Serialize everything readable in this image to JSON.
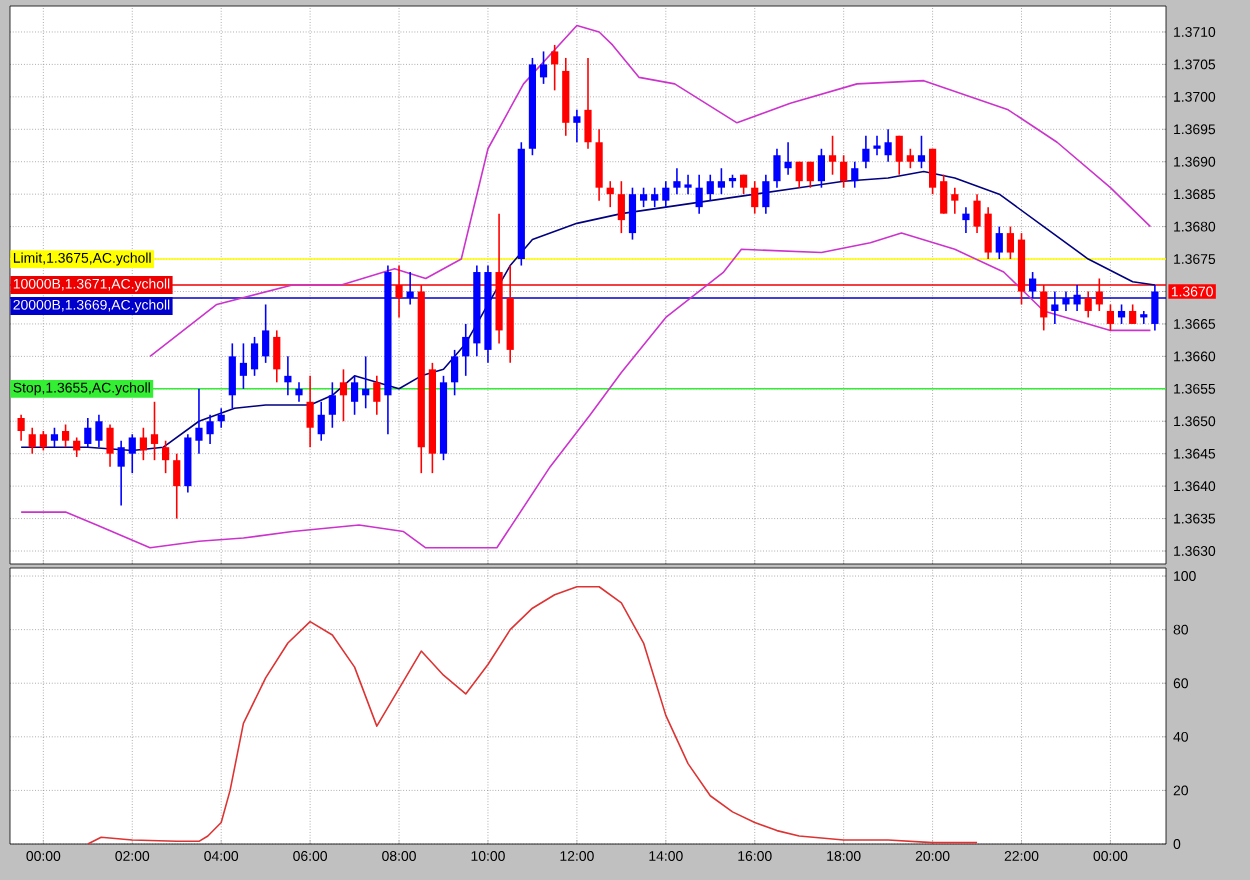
{
  "chart_data": [
    {
      "type": "candlestick",
      "x": [
        -0.5,
        -0.25,
        0,
        0.25,
        0.5,
        0.75,
        1,
        1.25,
        1.5,
        1.75,
        2,
        2.25,
        2.5,
        2.75,
        3,
        3.25,
        3.5,
        3.75,
        4,
        4.25,
        4.5,
        4.75,
        5,
        5.25,
        5.5,
        5.75,
        6,
        6.25,
        6.5,
        6.75,
        7,
        7.25,
        7.5,
        7.75,
        8,
        8.25,
        8.5,
        8.75,
        9,
        9.25,
        9.5,
        9.75,
        10,
        10.25,
        10.5,
        10.75,
        11,
        11.25,
        11.5,
        11.75,
        12,
        12.25,
        12.5,
        12.75,
        13,
        13.25,
        13.5,
        13.75,
        14,
        14.25,
        14.5,
        14.75,
        15,
        15.25,
        15.5,
        15.75,
        16,
        16.25,
        16.5,
        16.75,
        17,
        17.25,
        17.5,
        17.75,
        18,
        18.25,
        18.5,
        18.75,
        19,
        19.25,
        19.5,
        19.75,
        20,
        20.25,
        20.5,
        20.75,
        21,
        21.25,
        21.5,
        21.75,
        22,
        22.25,
        22.5,
        22.75,
        23,
        23.25,
        23.5,
        23.75,
        24,
        24.25,
        24.5,
        24.75,
        25
      ],
      "xticks": [
        {
          "value": 0,
          "label": null
        },
        {
          "value": 2,
          "label": null
        },
        {
          "value": 4,
          "label": null
        },
        {
          "value": 6,
          "label": null
        },
        {
          "value": 8,
          "label": null
        },
        {
          "value": 10,
          "label": null
        },
        {
          "value": 12,
          "label": null
        },
        {
          "value": 14,
          "label": null
        },
        {
          "value": 16,
          "label": null
        },
        {
          "value": 18,
          "label": null
        },
        {
          "value": 20,
          "label": null
        },
        {
          "value": 22,
          "label": null
        },
        {
          "value": 24,
          "label": null
        }
      ],
      "ohlc": [
        [
          1.36505,
          1.3651,
          1.3647,
          1.36485
        ],
        [
          1.3648,
          1.3649,
          1.3645,
          1.3646
        ],
        [
          1.3648,
          1.36485,
          1.36455,
          1.3646
        ],
        [
          1.3647,
          1.3649,
          1.3646,
          1.3648
        ],
        [
          1.36485,
          1.36495,
          1.3646,
          1.3647
        ],
        [
          1.3647,
          1.36475,
          1.36445,
          1.36455
        ],
        [
          1.36465,
          1.36505,
          1.3646,
          1.3649
        ],
        [
          1.3647,
          1.3651,
          1.3646,
          1.365
        ],
        [
          1.3649,
          1.36495,
          1.3643,
          1.3645
        ],
        [
          1.3643,
          1.3647,
          1.3637,
          1.3646
        ],
        [
          1.3645,
          1.3648,
          1.3642,
          1.36475
        ],
        [
          1.36475,
          1.3649,
          1.3644,
          1.36455
        ],
        [
          1.3648,
          1.3653,
          1.3644,
          1.36465
        ],
        [
          1.3646,
          1.3647,
          1.3642,
          1.3644
        ],
        [
          1.3644,
          1.3645,
          1.3635,
          1.364
        ],
        [
          1.364,
          1.3648,
          1.3639,
          1.36475
        ],
        [
          1.3647,
          1.3655,
          1.3645,
          1.3649
        ],
        [
          1.3648,
          1.3651,
          1.36465,
          1.365
        ],
        [
          1.365,
          1.3652,
          1.3649,
          1.3651
        ],
        [
          1.3654,
          1.3662,
          1.3652,
          1.366
        ],
        [
          1.3657,
          1.3662,
          1.3655,
          1.3659
        ],
        [
          1.3658,
          1.3663,
          1.3657,
          1.3662
        ],
        [
          1.366,
          1.3668,
          1.3659,
          1.3664
        ],
        [
          1.3663,
          1.3664,
          1.3656,
          1.3658
        ],
        [
          1.3656,
          1.366,
          1.3654,
          1.3657
        ],
        [
          1.3654,
          1.3656,
          1.3653,
          1.3655
        ],
        [
          1.3653,
          1.3657,
          1.3646,
          1.3649
        ],
        [
          1.3648,
          1.3653,
          1.3647,
          1.3651
        ],
        [
          1.3651,
          1.3656,
          1.3649,
          1.3654
        ],
        [
          1.3656,
          1.3658,
          1.365,
          1.3654
        ],
        [
          1.3653,
          1.3657,
          1.3651,
          1.3656
        ],
        [
          1.3654,
          1.366,
          1.3652,
          1.3655
        ],
        [
          1.3656,
          1.3657,
          1.3651,
          1.3653
        ],
        [
          1.3654,
          1.3674,
          1.3648,
          1.3673
        ],
        [
          1.3671,
          1.3674,
          1.3666,
          1.3669
        ],
        [
          1.3669,
          1.3673,
          1.3668,
          1.367
        ],
        [
          1.367,
          1.3671,
          1.3642,
          1.3646
        ],
        [
          1.3658,
          1.3659,
          1.3642,
          1.3645
        ],
        [
          1.3645,
          1.3657,
          1.3644,
          1.3656
        ],
        [
          1.3656,
          1.3661,
          1.3654,
          1.366
        ],
        [
          1.366,
          1.3665,
          1.3657,
          1.3663
        ],
        [
          1.3662,
          1.3674,
          1.366,
          1.3673
        ],
        [
          1.3661,
          1.3674,
          1.3659,
          1.3673
        ],
        [
          1.3673,
          1.3682,
          1.3662,
          1.3664
        ],
        [
          1.3669,
          1.3674,
          1.3659,
          1.3661
        ],
        [
          1.3675,
          1.3693,
          1.3674,
          1.3692
        ],
        [
          1.3692,
          1.3706,
          1.3691,
          1.3705
        ],
        [
          1.3703,
          1.3707,
          1.3702,
          1.3705
        ],
        [
          1.3707,
          1.3708,
          1.3701,
          1.3705
        ],
        [
          1.3704,
          1.3706,
          1.3694,
          1.3696
        ],
        [
          1.3696,
          1.3698,
          1.3693,
          1.3697
        ],
        [
          1.3698,
          1.3706,
          1.3692,
          1.3693
        ],
        [
          1.3693,
          1.3695,
          1.3684,
          1.3686
        ],
        [
          1.3686,
          1.3687,
          1.3683,
          1.3685
        ],
        [
          1.3685,
          1.3687,
          1.3679,
          1.3681
        ],
        [
          1.3679,
          1.3686,
          1.3678,
          1.3685
        ],
        [
          1.3684,
          1.3686,
          1.3683,
          1.3685
        ],
        [
          1.3684,
          1.3686,
          1.3683,
          1.3685
        ],
        [
          1.3684,
          1.3687,
          1.3683,
          1.3686
        ],
        [
          1.3686,
          1.3689,
          1.3685,
          1.3687
        ],
        [
          1.3686,
          1.3688,
          1.3685,
          1.36865
        ],
        [
          1.3683,
          1.3688,
          1.3682,
          1.3686
        ],
        [
          1.3685,
          1.3688,
          1.3684,
          1.3687
        ],
        [
          1.3686,
          1.3689,
          1.3685,
          1.3687
        ],
        [
          1.3687,
          1.3688,
          1.3686,
          1.36875
        ],
        [
          1.3688,
          1.3688,
          1.3685,
          1.3686
        ],
        [
          1.3686,
          1.3687,
          1.3682,
          1.3683
        ],
        [
          1.3683,
          1.3688,
          1.3682,
          1.3687
        ],
        [
          1.3687,
          1.3692,
          1.3686,
          1.3691
        ],
        [
          1.3689,
          1.3693,
          1.3688,
          1.369
        ],
        [
          1.369,
          1.369,
          1.3686,
          1.3687
        ],
        [
          1.369,
          1.369,
          1.3686,
          1.3687
        ],
        [
          1.3687,
          1.3692,
          1.3686,
          1.3691
        ],
        [
          1.3691,
          1.3694,
          1.3688,
          1.369
        ],
        [
          1.369,
          1.3691,
          1.3686,
          1.3687
        ],
        [
          1.3687,
          1.369,
          1.3686,
          1.3689
        ],
        [
          1.369,
          1.3694,
          1.3689,
          1.3692
        ],
        [
          1.3692,
          1.3694,
          1.3691,
          1.36925
        ],
        [
          1.3691,
          1.3695,
          1.369,
          1.3693
        ],
        [
          1.3694,
          1.3694,
          1.3688,
          1.369
        ],
        [
          1.3691,
          1.3692,
          1.3689,
          1.369
        ],
        [
          1.369,
          1.3694,
          1.3689,
          1.3691
        ],
        [
          1.3692,
          1.3692,
          1.3685,
          1.3686
        ],
        [
          1.3687,
          1.3688,
          1.3682,
          1.3682
        ],
        [
          1.3685,
          1.3686,
          1.3682,
          1.3684
        ],
        [
          1.3681,
          1.3683,
          1.3679,
          1.3682
        ],
        [
          1.3684,
          1.3685,
          1.3679,
          1.368
        ],
        [
          1.3682,
          1.3683,
          1.3675,
          1.3676
        ],
        [
          1.3676,
          1.368,
          1.3675,
          1.3679
        ],
        [
          1.3679,
          1.368,
          1.3675,
          1.3676
        ],
        [
          1.3678,
          1.3679,
          1.3668,
          1.367
        ],
        [
          1.367,
          1.3673,
          1.3669,
          1.3672
        ],
        [
          1.367,
          1.3671,
          1.3664,
          1.3666
        ],
        [
          1.3667,
          1.367,
          1.3665,
          1.3668
        ],
        [
          1.3668,
          1.367,
          1.3667,
          1.3669
        ],
        [
          1.3668,
          1.3671,
          1.3667,
          1.36695
        ],
        [
          1.3669,
          1.367,
          1.3666,
          1.3667
        ],
        [
          1.367,
          1.3672,
          1.3667,
          1.3668
        ],
        [
          1.3667,
          1.3668,
          1.3664,
          1.3665
        ],
        [
          1.3666,
          1.3668,
          1.3665,
          1.3667
        ],
        [
          1.3667,
          1.3668,
          1.3665,
          1.3665
        ],
        [
          1.3666,
          1.3667,
          1.3665,
          1.36665
        ],
        [
          1.3665,
          1.3671,
          1.3664,
          1.367
        ]
      ],
      "series": [
        {
          "type": "line",
          "color": "#000080",
          "x": [
            -0.5,
            1,
            2,
            2.7,
            3.5,
            4.3,
            5,
            6,
            6.5,
            7,
            7.5,
            8,
            8.5,
            9,
            9.5,
            10,
            10.5,
            11,
            12,
            13,
            14,
            15,
            16,
            17,
            18,
            19,
            19.8,
            20.5,
            21.5,
            22.5,
            23.5,
            24.5,
            25
          ],
          "values": [
            1.3646,
            1.3646,
            1.36455,
            1.3646,
            1.365,
            1.3652,
            1.36525,
            1.36525,
            1.3654,
            1.3657,
            1.3656,
            1.3655,
            1.3657,
            1.3658,
            1.3662,
            1.3668,
            1.3674,
            1.3678,
            1.36805,
            1.3682,
            1.3683,
            1.3684,
            1.3685,
            1.3686,
            1.3687,
            1.36875,
            1.36885,
            1.36875,
            1.3685,
            1.368,
            1.3675,
            1.36715,
            1.3671
          ]
        },
        {
          "type": "line",
          "color": "#cc33cc",
          "x": [
            2.4,
            3.9,
            5.6,
            6.7,
            7.9,
            8.6,
            9.4,
            10,
            10.8,
            12,
            12.5,
            12.8,
            13.4,
            14.2,
            15.6,
            16.8,
            18.3,
            19.8,
            21.7,
            22.8,
            24,
            24.9
          ],
          "values": [
            1.366,
            1.3668,
            1.3671,
            1.3671,
            1.36735,
            1.3672,
            1.3675,
            1.3692,
            1.3702,
            1.3711,
            1.371,
            1.3708,
            1.3703,
            1.3702,
            1.3696,
            1.3699,
            1.3702,
            1.37025,
            1.3698,
            1.3693,
            1.3686,
            1.368
          ]
        },
        {
          "type": "line",
          "color": "#cc33cc",
          "x": [
            -0.5,
            0.5,
            1.2,
            2.4,
            3.5,
            4.5,
            5.6,
            7.1,
            8.1,
            8.6,
            10.2,
            11.4,
            12.3,
            13,
            14,
            15.3,
            15.7,
            17.5,
            18.6,
            19.3,
            20.5,
            21.6,
            22.5,
            24,
            24.9
          ],
          "values": [
            1.3636,
            1.3636,
            1.3634,
            1.36305,
            1.36315,
            1.3632,
            1.3633,
            1.3634,
            1.3633,
            1.36305,
            1.36305,
            1.3643,
            1.3651,
            1.36575,
            1.3666,
            1.3673,
            1.36765,
            1.3676,
            1.36775,
            1.3679,
            1.36765,
            1.3673,
            1.3667,
            1.3664,
            1.3664
          ]
        }
      ],
      "ref_lines": [
        {
          "axis": "y",
          "value": 1.3675,
          "label": "Limit,1.3675,AC.ycholl",
          "color": "#ffff00"
        },
        {
          "axis": "y",
          "value": 1.3671,
          "label": "10000B,1.3671,AC.ycholl",
          "color": "#ee0000"
        },
        {
          "axis": "y",
          "value": 1.3669,
          "label": "20000B,1.3669,AC.ycholl",
          "color": "#0000cc"
        },
        {
          "axis": "y",
          "value": 1.3655,
          "label": "Stop,1.3655,AC.ycholl",
          "color": "#33ee33"
        }
      ],
      "annotations": [
        {
          "text": "1.3670",
          "y": 1.367
        }
      ],
      "xlim": [
        -0.75,
        25.25
      ],
      "ylim": [
        1.3628,
        1.3714
      ],
      "yticks": [
        {
          "value": 1.363,
          "label": "1.3630"
        },
        1.3635,
        {
          "value": 1.364,
          "label": "1.3640"
        },
        1.3645,
        {
          "value": 1.365,
          "label": "1.3650"
        },
        1.3655,
        {
          "value": 1.366,
          "label": "1.3660"
        },
        1.3665,
        {
          "value": 1.367,
          "label": null
        },
        1.3675,
        {
          "value": 1.368,
          "label": "1.3680"
        },
        1.3685,
        {
          "value": 1.369,
          "label": "1.3690"
        },
        1.3695,
        {
          "value": 1.37,
          "label": "1.3700"
        },
        1.3705,
        {
          "value": 1.371,
          "label": "1.3710"
        }
      ],
      "tick_labels": "y",
      "grid": true
    },
    {
      "type": "line",
      "series": [
        {
          "color": "#dd3333",
          "x": [
            1,
            1.3,
            2,
            3,
            3.5,
            3.7,
            4,
            4.2,
            4.5,
            5,
            5.5,
            6,
            6.5,
            7,
            7.5,
            8,
            8.5,
            9,
            9.5,
            10,
            10.5,
            11,
            11.5,
            12,
            12.5,
            13,
            13.5,
            14,
            14.5,
            15,
            15.5,
            16,
            16.5,
            17,
            18,
            19,
            20,
            21
          ],
          "values": [
            0,
            2.5,
            1.5,
            1,
            1,
            3,
            8,
            20,
            45,
            62,
            75,
            83,
            78,
            66,
            44,
            58,
            72,
            63,
            56,
            67,
            80,
            88,
            93,
            96,
            96,
            90,
            75,
            48,
            30,
            18,
            12,
            8,
            5,
            3,
            1.5,
            1.5,
            0.5,
            0.5
          ]
        }
      ],
      "xlim": [
        -0.75,
        25.25
      ],
      "xticks": [
        {
          "value": 0,
          "label": "00:00"
        },
        {
          "value": 2,
          "label": "02:00"
        },
        {
          "value": 4,
          "label": "04:00"
        },
        {
          "value": 6,
          "label": "06:00"
        },
        {
          "value": 8,
          "label": "08:00"
        },
        {
          "value": 10,
          "label": "10:00"
        },
        {
          "value": 12,
          "label": "12:00"
        },
        {
          "value": 14,
          "label": "14:00"
        },
        {
          "value": 16,
          "label": "16:00"
        },
        {
          "value": 18,
          "label": "18:00"
        },
        {
          "value": 20,
          "label": "20:00"
        },
        {
          "value": 22,
          "label": "22:00"
        },
        {
          "value": 24,
          "label": "00:00"
        }
      ],
      "ylim": [
        0,
        103
      ],
      "yticks": [
        0,
        20,
        40,
        60,
        80,
        100
      ],
      "grid": true
    }
  ]
}
